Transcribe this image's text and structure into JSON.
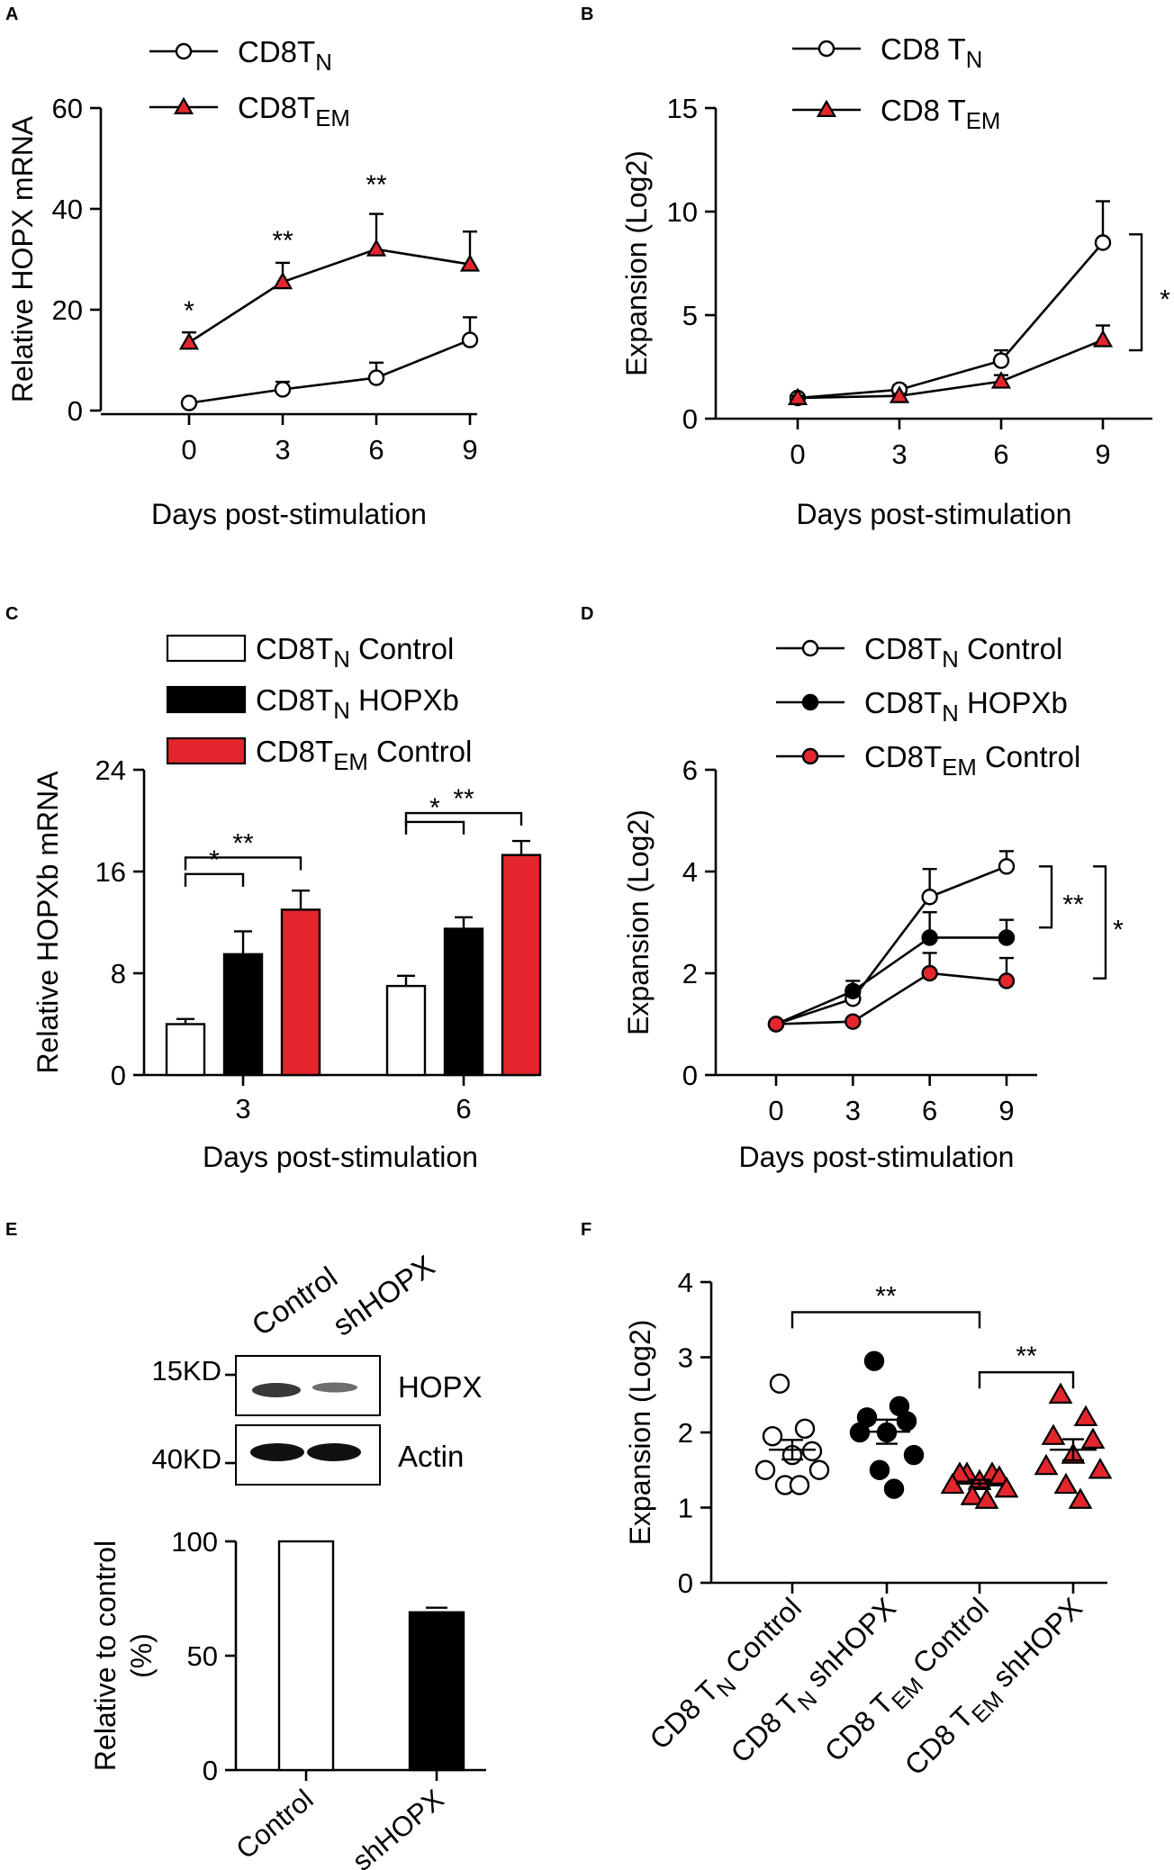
{
  "figure": {
    "panel_labels": [
      "A",
      "B",
      "C",
      "D",
      "E",
      "F"
    ],
    "colors": {
      "red": "#e3262d",
      "black": "#000000",
      "white": "#ffffff"
    }
  },
  "chart_data": [
    {
      "panel": "A",
      "type": "line",
      "xlabel": "Days post-stimulation",
      "ylabel": "Relative HOPX mRNA",
      "x": [
        0,
        3,
        6,
        9
      ],
      "xlim": [
        0,
        9
      ],
      "ylim": [
        0,
        60
      ],
      "yticks": [
        0,
        20,
        40,
        60
      ],
      "legend": [
        {
          "main": "CD8T",
          "sub": "N",
          "rest": ""
        },
        {
          "main": "CD8T",
          "sub": "EM",
          "rest": ""
        }
      ],
      "series": [
        {
          "name": "CD8T_N",
          "marker": "circle-open",
          "values": [
            1.5,
            4.2,
            6.5,
            14.0
          ],
          "err": [
            0.8,
            1.5,
            3.0,
            4.5
          ]
        },
        {
          "name": "CD8T_EM",
          "marker": "triangle-red",
          "values": [
            13.5,
            25.5,
            32.0,
            29.0
          ],
          "err": [
            2.0,
            3.8,
            7.0,
            6.5
          ]
        }
      ],
      "annotations": [
        {
          "x": 0,
          "y": 18,
          "text": "*"
        },
        {
          "x": 3,
          "y": 32,
          "text": "**"
        },
        {
          "x": 6,
          "y": 43,
          "text": "**"
        }
      ]
    },
    {
      "panel": "B",
      "type": "line",
      "xlabel": "Days post-stimulation",
      "ylabel": "Expansion (Log2)",
      "x": [
        0,
        3,
        6,
        9
      ],
      "xlim": [
        0,
        9
      ],
      "ylim": [
        0,
        15
      ],
      "yticks": [
        0,
        5,
        10,
        15
      ],
      "legend": [
        {
          "main": "CD8 T",
          "sub": "N",
          "rest": ""
        },
        {
          "main": "CD8 T",
          "sub": "EM",
          "rest": ""
        }
      ],
      "series": [
        {
          "name": "CD8 T_N",
          "marker": "circle-open",
          "values": [
            1.0,
            1.4,
            2.8,
            8.5
          ],
          "err": [
            0.1,
            0.2,
            0.5,
            2.0
          ]
        },
        {
          "name": "CD8 T_EM",
          "marker": "triangle-red",
          "values": [
            1.0,
            1.1,
            1.8,
            3.8
          ],
          "err": [
            0.1,
            0.1,
            0.3,
            0.7
          ]
        }
      ],
      "brackets": [
        {
          "x": 9,
          "y1": 3.3,
          "y2": 8.9,
          "text": "*"
        }
      ]
    },
    {
      "panel": "C",
      "type": "bar",
      "xlabel": "Days post-stimulation",
      "ylabel": "Relative HOPXb mRNA",
      "categories": [
        "3",
        "6"
      ],
      "ylim": [
        0,
        24
      ],
      "yticks": [
        0,
        8,
        16,
        24
      ],
      "legend": [
        {
          "main": "CD8T",
          "sub": "N",
          "rest": " Control"
        },
        {
          "main": "CD8T",
          "sub": "N",
          "rest": " HOPXb"
        },
        {
          "main": "CD8T",
          "sub": "EM",
          "rest": " Control"
        }
      ],
      "series": [
        {
          "name": "CD8T_N Control",
          "fill": "white",
          "values": [
            4.0,
            7.0
          ],
          "err": [
            0.4,
            0.8
          ]
        },
        {
          "name": "CD8T_N HOPXb",
          "fill": "black",
          "values": [
            9.5,
            11.5
          ],
          "err": [
            1.8,
            0.9
          ]
        },
        {
          "name": "CD8T_EM Control",
          "fill": "red",
          "values": [
            13.0,
            17.3
          ],
          "err": [
            1.5,
            1.1
          ]
        }
      ],
      "brackets": [
        {
          "group": 0,
          "from": 0,
          "to": 1,
          "y": 15.8,
          "text": "*"
        },
        {
          "group": 0,
          "from": 0,
          "to": 2,
          "y": 17.1,
          "text": "**"
        },
        {
          "group": 1,
          "from": 0,
          "to": 1,
          "y": 19.9,
          "text": "*"
        },
        {
          "group": 1,
          "from": 0,
          "to": 2,
          "y": 20.6,
          "text": "**"
        }
      ]
    },
    {
      "panel": "D",
      "type": "line",
      "xlabel": "Days post-stimulation",
      "ylabel": "Expansion (Log2)",
      "x": [
        0,
        3,
        6,
        9
      ],
      "xlim": [
        0,
        9
      ],
      "ylim": [
        0,
        6
      ],
      "yticks": [
        0,
        2,
        4,
        6
      ],
      "legend": [
        {
          "main": "CD8T",
          "sub": "N",
          "rest": " Control"
        },
        {
          "main": "CD8T",
          "sub": "N",
          "rest": " HOPXb"
        },
        {
          "main": "CD8T",
          "sub": "EM",
          "rest": " Control"
        }
      ],
      "series": [
        {
          "name": "CD8T_N Control",
          "marker": "circle-open",
          "values": [
            1.0,
            1.5,
            3.5,
            4.1
          ],
          "err": [
            0.05,
            0.15,
            0.55,
            0.3
          ]
        },
        {
          "name": "CD8T_N HOPXb",
          "marker": "circle-black",
          "values": [
            1.0,
            1.65,
            2.7,
            2.7
          ],
          "err": [
            0.05,
            0.2,
            0.5,
            0.35
          ]
        },
        {
          "name": "CD8T_EM Control",
          "marker": "circle-red",
          "values": [
            1.0,
            1.05,
            2.0,
            1.85
          ],
          "err": [
            0.05,
            0.05,
            0.4,
            0.45
          ]
        }
      ],
      "brackets": [
        {
          "y1": 2.9,
          "y2": 4.1,
          "text": "**",
          "level": 0
        },
        {
          "y1": 1.9,
          "y2": 4.1,
          "text": "*",
          "level": 1
        }
      ]
    },
    {
      "panel": "E",
      "type": "bar",
      "ylabel": "Relative to control",
      "ylabel2": "(%)",
      "categories": [
        "Control",
        "shHOPX"
      ],
      "values": [
        100,
        69
      ],
      "err": [
        0,
        2
      ],
      "fills": [
        "white",
        "black"
      ],
      "ylim": [
        0,
        100
      ],
      "yticks": [
        0,
        50,
        100
      ],
      "blot": {
        "lane_labels": [
          "Control",
          "shHOPX"
        ],
        "rows": [
          {
            "marker": "15KD",
            "protein": "HOPX"
          },
          {
            "marker": "40KD",
            "protein": "Actin"
          }
        ]
      }
    },
    {
      "panel": "F",
      "type": "scatter",
      "ylabel": "Expansion (Log2)",
      "ylim": [
        0,
        4
      ],
      "yticks": [
        0,
        1,
        2,
        3,
        4
      ],
      "categories": [
        {
          "main": "CD8 T",
          "sub": "N",
          "rest": " Control"
        },
        {
          "main": "CD8 T",
          "sub": "N",
          "rest": " shHOPX"
        },
        {
          "main": "CD8 T",
          "sub": "EM",
          "rest": " Control"
        },
        {
          "main": "CD8 T",
          "sub": "EM",
          "rest": " shHOPX"
        }
      ],
      "groups": [
        {
          "marker": "circle-open",
          "points": [
            2.65,
            2.05,
            1.95,
            1.75,
            1.7,
            1.5,
            1.5,
            1.3,
            1.3
          ],
          "mean": 1.77,
          "sem": 0.13
        },
        {
          "marker": "circle-black",
          "points": [
            2.95,
            2.35,
            2.2,
            2.15,
            2.0,
            2.0,
            1.7,
            1.5,
            1.25
          ],
          "mean": 2.01,
          "sem": 0.16
        },
        {
          "marker": "triangle-red",
          "points": [
            1.45,
            1.45,
            1.45,
            1.4,
            1.35,
            1.3,
            1.25,
            1.15,
            1.1
          ],
          "mean": 1.32,
          "sem": 0.05
        },
        {
          "marker": "triangle-red",
          "points": [
            2.5,
            2.2,
            1.95,
            1.9,
            1.7,
            1.55,
            1.5,
            1.3,
            1.1
          ],
          "mean": 1.77,
          "sem": 0.14
        }
      ],
      "brackets": [
        {
          "from": 0,
          "to": 2,
          "y": 3.6,
          "text": "**"
        },
        {
          "from": 2,
          "to": 3,
          "y": 2.8,
          "text": "**"
        }
      ]
    }
  ]
}
